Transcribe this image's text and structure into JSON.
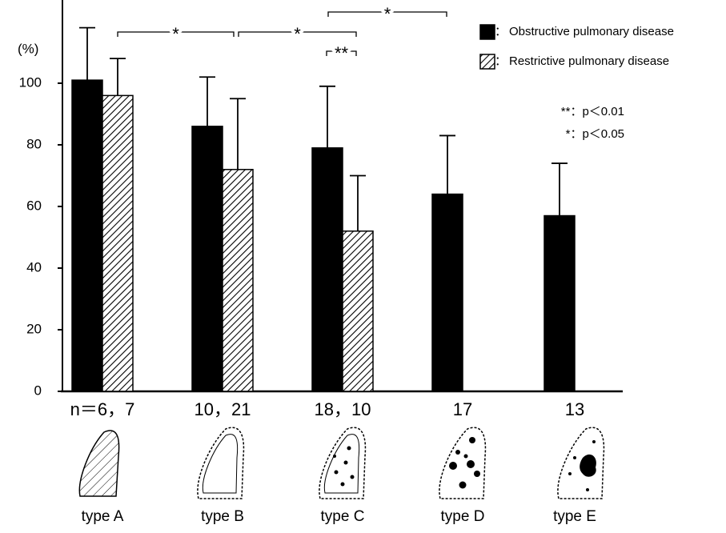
{
  "chart_data": {
    "type": "bar",
    "y_axis_label": "(%)",
    "categories": [
      "type A",
      "type B",
      "type C",
      "type D",
      "type E"
    ],
    "n_labels": [
      "n＝6，7",
      "10，21",
      "18，10",
      "17",
      "13"
    ],
    "series": [
      {
        "name": "Obstructive pulmonary disease",
        "color": "#000000",
        "values": [
          101,
          86,
          79,
          64,
          57
        ],
        "errors": [
          17,
          16,
          20,
          19,
          17
        ]
      },
      {
        "name": "Restrictive pulmonary disease",
        "color": "hatch",
        "values": [
          96,
          72,
          52,
          null,
          null
        ],
        "errors": [
          12,
          23,
          18,
          null,
          null
        ]
      }
    ],
    "legend_separator": "：",
    "ylim": [
      0,
      127
    ],
    "yticks": [
      0,
      20,
      40,
      60,
      80,
      100
    ],
    "significance": [
      "*",
      "*",
      "**",
      "*"
    ],
    "annotations": [
      "**：p＜0.01",
      "*：p＜0.05"
    ]
  }
}
